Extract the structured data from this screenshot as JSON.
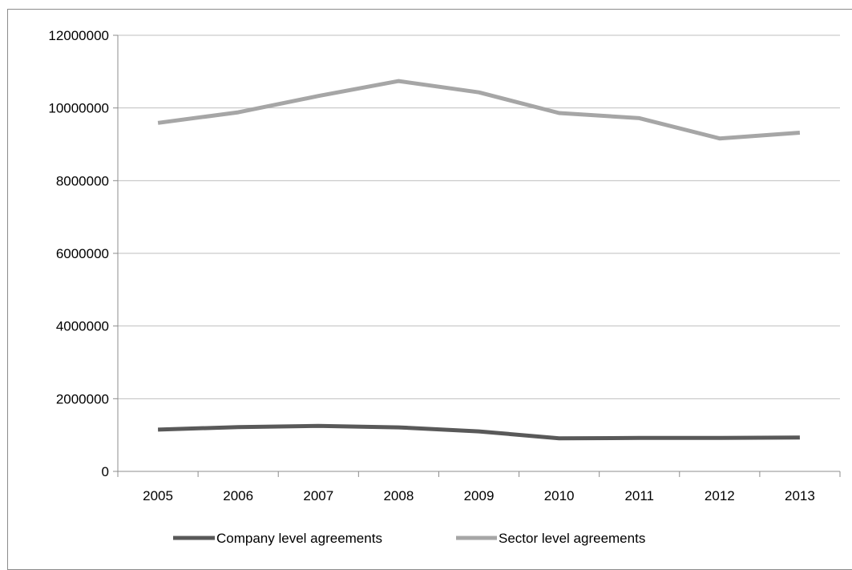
{
  "chart_data": {
    "type": "line",
    "title": "",
    "xlabel": "",
    "ylabel": "",
    "categories": [
      "2005",
      "2006",
      "2007",
      "2008",
      "2009",
      "2010",
      "2011",
      "2012",
      "2013"
    ],
    "ylim": [
      0,
      12000000
    ],
    "yticks": [
      "0",
      "2000000",
      "4000000",
      "6000000",
      "8000000",
      "10000000",
      "12000000"
    ],
    "grid": true,
    "legend_position": "bottom",
    "series": [
      {
        "name": "Company level agreements",
        "color": "#595959",
        "values": [
          1150000,
          1220000,
          1250000,
          1210000,
          1100000,
          910000,
          920000,
          920000,
          930000
        ]
      },
      {
        "name": "Sector level agreements",
        "color": "#a6a6a6",
        "values": [
          9590000,
          9880000,
          10330000,
          10740000,
          10430000,
          9860000,
          9720000,
          9160000,
          9320000
        ]
      }
    ]
  }
}
